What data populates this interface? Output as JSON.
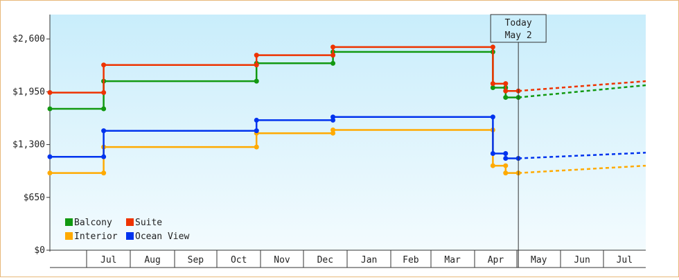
{
  "chart_data": {
    "type": "line",
    "title": "",
    "xlabel": "",
    "ylabel": "",
    "ylim": [
      0,
      2900
    ],
    "y_ticks": [
      {
        "value": 0,
        "label": "$0"
      },
      {
        "value": 650,
        "label": "$650"
      },
      {
        "value": 1300,
        "label": "$1,300"
      },
      {
        "value": 1950,
        "label": "$1,950"
      },
      {
        "value": 2600,
        "label": "$2,600"
      }
    ],
    "x_range": [
      "2025-06-05",
      "2026-07-31"
    ],
    "month_ticks": [
      {
        "label": "Jul",
        "start": "2025-07-01",
        "end": "2025-08-01"
      },
      {
        "label": "Aug",
        "start": "2025-08-01",
        "end": "2025-09-01"
      },
      {
        "label": "Sep",
        "start": "2025-09-01",
        "end": "2025-10-01"
      },
      {
        "label": "Oct",
        "start": "2025-10-01",
        "end": "2025-11-01"
      },
      {
        "label": "Nov",
        "start": "2025-11-01",
        "end": "2025-12-01"
      },
      {
        "label": "Dec",
        "start": "2025-12-01",
        "end": "2026-01-01"
      },
      {
        "label": "Jan",
        "start": "2026-01-01",
        "end": "2026-02-01"
      },
      {
        "label": "Feb",
        "start": "2026-02-01",
        "end": "2026-03-01"
      },
      {
        "label": "Mar",
        "start": "2026-03-01",
        "end": "2026-04-01"
      },
      {
        "label": "Apr",
        "start": "2026-04-01",
        "end": "2026-05-01"
      },
      {
        "label": "May",
        "start": "2026-05-01",
        "end": "2026-06-01"
      },
      {
        "label": "Jun",
        "start": "2026-06-01",
        "end": "2026-07-01"
      },
      {
        "label": "Jul",
        "start": "2026-07-01",
        "end": "2026-08-01"
      }
    ],
    "today": {
      "date": "2026-05-02",
      "label_line1": "Today",
      "label_line2": "May 2"
    },
    "legend": {
      "placement": "bottom-left"
    },
    "series": [
      {
        "name": "Balcony",
        "color": "#119911",
        "points": [
          {
            "x": "2025-06-05",
            "y": 1740
          },
          {
            "x": "2025-07-13",
            "y": 1740
          },
          {
            "x": "2025-07-13",
            "y": 2080
          },
          {
            "x": "2025-10-29",
            "y": 2080
          },
          {
            "x": "2025-10-29",
            "y": 2300
          },
          {
            "x": "2025-12-22",
            "y": 2300
          },
          {
            "x": "2025-12-22",
            "y": 2440
          },
          {
            "x": "2026-04-14",
            "y": 2440
          },
          {
            "x": "2026-04-14",
            "y": 2000
          },
          {
            "x": "2026-04-23",
            "y": 2000
          },
          {
            "x": "2026-04-23",
            "y": 1880
          },
          {
            "x": "2026-05-02",
            "y": 1880
          }
        ],
        "forecast": [
          {
            "x": "2026-05-02",
            "y": 1880
          },
          {
            "x": "2026-07-31",
            "y": 2030
          }
        ]
      },
      {
        "name": "Suite",
        "color": "#ee3300",
        "points": [
          {
            "x": "2025-06-05",
            "y": 1940
          },
          {
            "x": "2025-07-13",
            "y": 1940
          },
          {
            "x": "2025-07-13",
            "y": 2280
          },
          {
            "x": "2025-10-29",
            "y": 2280
          },
          {
            "x": "2025-10-29",
            "y": 2400
          },
          {
            "x": "2025-12-22",
            "y": 2400
          },
          {
            "x": "2025-12-22",
            "y": 2500
          },
          {
            "x": "2026-04-14",
            "y": 2500
          },
          {
            "x": "2026-04-14",
            "y": 2050
          },
          {
            "x": "2026-04-23",
            "y": 2050
          },
          {
            "x": "2026-04-23",
            "y": 1960
          },
          {
            "x": "2026-05-02",
            "y": 1960
          }
        ],
        "forecast": [
          {
            "x": "2026-05-02",
            "y": 1960
          },
          {
            "x": "2026-07-31",
            "y": 2080
          }
        ]
      },
      {
        "name": "Interior",
        "color": "#ffaa00",
        "points": [
          {
            "x": "2025-06-05",
            "y": 950
          },
          {
            "x": "2025-07-13",
            "y": 950
          },
          {
            "x": "2025-07-13",
            "y": 1270
          },
          {
            "x": "2025-10-29",
            "y": 1270
          },
          {
            "x": "2025-10-29",
            "y": 1440
          },
          {
            "x": "2025-12-22",
            "y": 1440
          },
          {
            "x": "2025-12-22",
            "y": 1480
          },
          {
            "x": "2026-04-14",
            "y": 1480
          },
          {
            "x": "2026-04-14",
            "y": 1040
          },
          {
            "x": "2026-04-23",
            "y": 1040
          },
          {
            "x": "2026-04-23",
            "y": 950
          },
          {
            "x": "2026-05-02",
            "y": 950
          }
        ],
        "forecast": [
          {
            "x": "2026-05-02",
            "y": 950
          },
          {
            "x": "2026-07-31",
            "y": 1040
          }
        ]
      },
      {
        "name": "Ocean View",
        "color": "#0033ee",
        "points": [
          {
            "x": "2025-06-05",
            "y": 1150
          },
          {
            "x": "2025-07-13",
            "y": 1150
          },
          {
            "x": "2025-07-13",
            "y": 1470
          },
          {
            "x": "2025-10-29",
            "y": 1470
          },
          {
            "x": "2025-10-29",
            "y": 1600
          },
          {
            "x": "2025-12-22",
            "y": 1600
          },
          {
            "x": "2025-12-22",
            "y": 1640
          },
          {
            "x": "2026-04-14",
            "y": 1640
          },
          {
            "x": "2026-04-14",
            "y": 1190
          },
          {
            "x": "2026-04-23",
            "y": 1190
          },
          {
            "x": "2026-04-23",
            "y": 1130
          },
          {
            "x": "2026-05-02",
            "y": 1130
          }
        ],
        "forecast": [
          {
            "x": "2026-05-02",
            "y": 1130
          },
          {
            "x": "2026-07-31",
            "y": 1200
          }
        ]
      }
    ]
  }
}
